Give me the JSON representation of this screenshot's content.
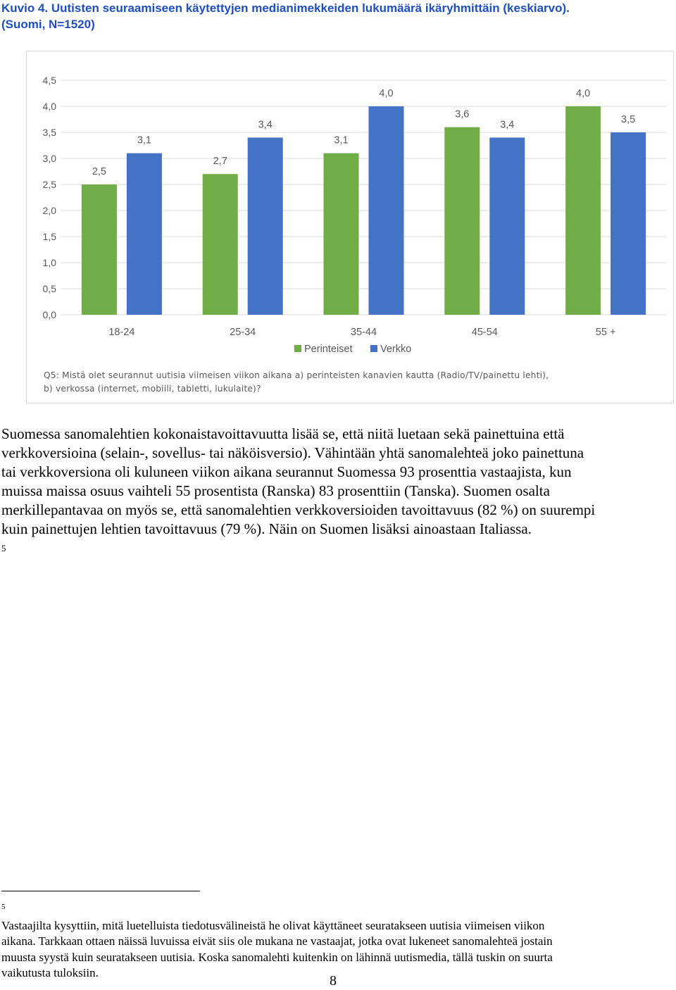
{
  "caption": {
    "line1": "Kuvio 4. Uutisten seuraamiseen käytettyjen medianimekkeiden lukumäärä ikäryhmittäin (keskiarvo).",
    "line2": "(Suomi, N=1520)"
  },
  "chart_data": {
    "type": "bar",
    "categories": [
      "18-24",
      "25-34",
      "35-44",
      "45-54",
      "55 +"
    ],
    "series": [
      {
        "name": "Perinteiset",
        "color": "#70ad47",
        "values": [
          2.5,
          2.7,
          3.1,
          3.6,
          4.0
        ],
        "labels": [
          "2,5",
          "2,7",
          "3,1",
          "3,6",
          "4,0"
        ]
      },
      {
        "name": "Verkko",
        "color": "#4472c4",
        "values": [
          3.1,
          3.4,
          4.0,
          3.4,
          3.5
        ],
        "labels": [
          "3,1",
          "3,4",
          "4,0",
          "3,4",
          "3,5"
        ]
      }
    ],
    "ylim": [
      0,
      4.5
    ],
    "yticks": [
      0,
      0.5,
      1,
      1.5,
      2,
      2.5,
      3,
      3.5,
      4,
      4.5
    ],
    "ytick_labels": [
      "0,0",
      "0,5",
      "1,0",
      "1,5",
      "2,0",
      "2,5",
      "3,0",
      "3,5",
      "4,0",
      "4,5"
    ],
    "grid": true,
    "legend_position": "bottom",
    "gridline_color": "#d9d9d9",
    "tick_label_color": "#595959"
  },
  "note": {
    "line1": "Q5: Mistä olet seurannut uutisia viimeisen viikon aikana a) perinteisten kanavien kautta (Radio/TV/painettu lehti),",
    "line2": "b) verkossa (internet, mobiili, tabletti, lukulaite)?"
  },
  "body": {
    "lines": [
      "Suomessa sanomalehtien kokonaistavoittavuutta lisää se, että niitä luetaan sekä painettuina että",
      "verkkoversioina (selain-, sovellus- tai näköisversio). Vähintään yhtä sanomalehteä joko painettuna",
      "tai verkkoversiona oli kuluneen viikon aikana seurannut Suomessa 93 prosenttia vastaajista, kun",
      "muissa maissa osuus vaihteli 55 prosentista (Ranska) 83 prosenttiin (Tanska). Suomen osalta",
      "merkillepantavaa on myös se, että sanomalehtien verkkoversioiden tavoittavuus (82 %) on suurempi"
    ],
    "last_line": "kuin painettujen lehtien tavoittavuus (79 %). Näin on Suomen lisäksi ainoastaan Italiassa.",
    "footnote_ref": "5"
  },
  "footnote": {
    "marker": "5",
    "line1": "Vastaajilta kysyttiin, mitä luetelluista tiedotusvälineistä he olivat käyttäneet seuratakseen uutisia viimeisen viikon",
    "line2": "aikana. Tarkkaan ottaen näissä luvuissa eivät siis ole mukana ne vastaajat, jotka ovat lukeneet sanomalehteä jostain",
    "line3": "muusta syystä kuin seuratakseen uutisia. Koska sanomalehti kuitenkin on lähinnä uutismedia, tällä tuskin on suurta",
    "line4": "vaikutusta tuloksiin."
  },
  "page_number": "8"
}
